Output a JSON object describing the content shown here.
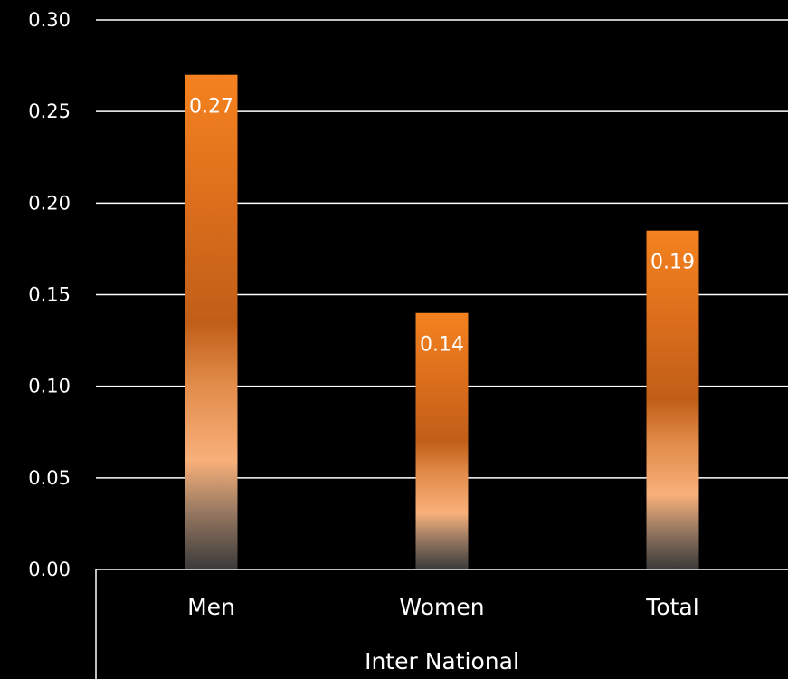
{
  "chart_data": {
    "type": "bar",
    "categories": [
      "Men",
      "Women",
      "Total"
    ],
    "group_label": "Inter National",
    "values": [
      0.27,
      0.14,
      0.185
    ],
    "data_labels": [
      "0.27",
      "0.14",
      "0.19"
    ],
    "ylim": [
      0,
      0.3
    ],
    "yticks": [
      "0.00",
      "0.05",
      "0.10",
      "0.15",
      "0.20",
      "0.25",
      "0.30"
    ],
    "grid": true,
    "colors": {
      "background": "#000000",
      "bar_top": "#f5821f",
      "bar_mid": "#c8621a",
      "bar_light": "#f8b07a",
      "bar_bottom": "#3a3a3a",
      "axis": "#ffffff"
    }
  }
}
